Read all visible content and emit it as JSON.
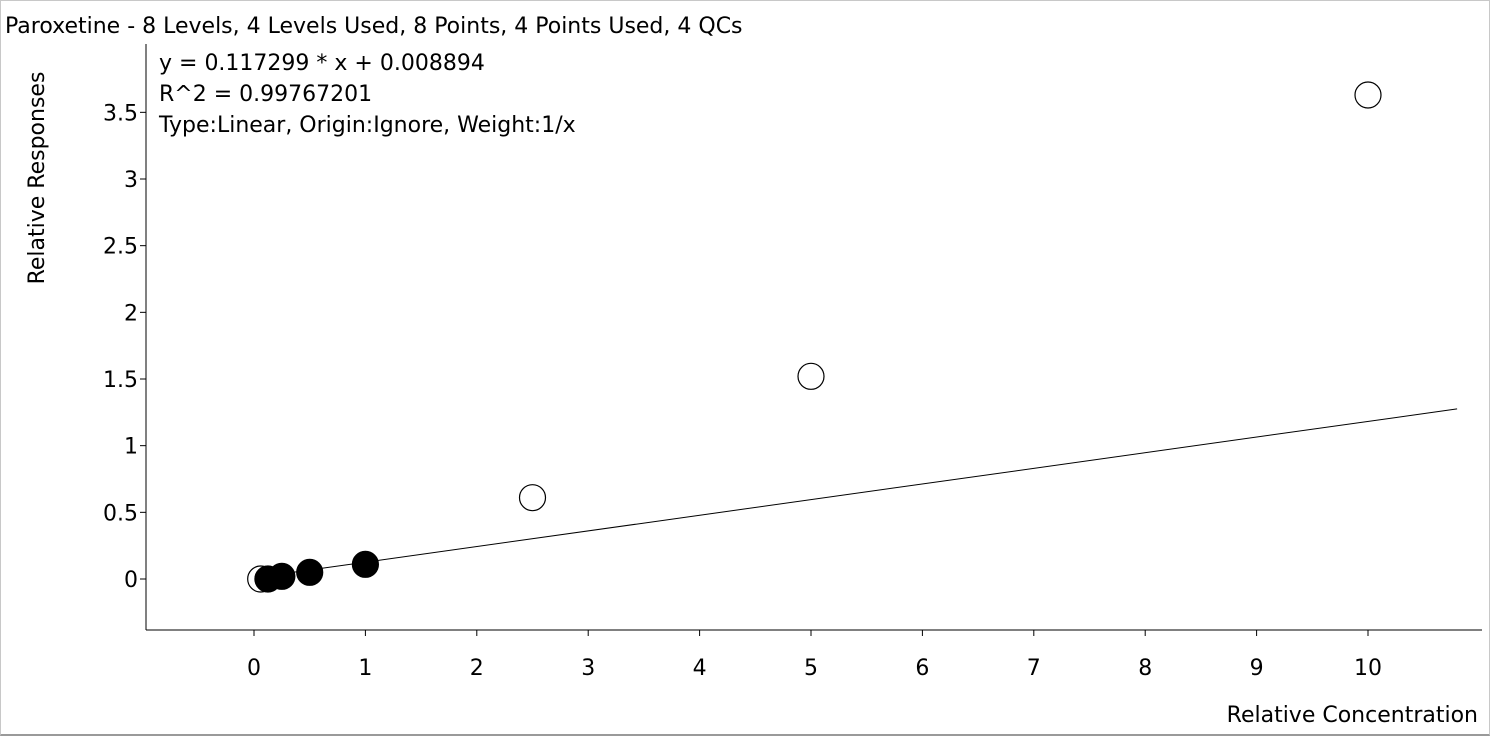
{
  "chart_data": {
    "type": "scatter",
    "title": "Paroxetine - 8 Levels, 4 Levels Used, 8 Points, 4 Points Used, 4 QCs",
    "xlabel": "Relative Concentration",
    "ylabel": "Relative Responses",
    "xlim": [
      -0.9,
      10.9
    ],
    "ylim": [
      -0.35,
      3.9
    ],
    "x_ticks": [
      0,
      1,
      2,
      3,
      4,
      5,
      6,
      7,
      8,
      9,
      10
    ],
    "x_tick_labels": [
      "0",
      "1",
      "2",
      "3",
      "4",
      "5",
      "6",
      "7",
      "8",
      "9",
      "10"
    ],
    "y_ticks": [
      0,
      0.5,
      1,
      1.5,
      2,
      2.5,
      3,
      3.5
    ],
    "y_tick_labels": [
      "0",
      "0.5",
      "1",
      "1.5",
      "2",
      "2.5",
      "3",
      "3.5"
    ],
    "grid": false,
    "annotations": {
      "equation": "y = 0.117299 * x  + 0.008894",
      "r_squared": "R^2 = 0.99767201",
      "fit_type": "Type:Linear, Origin:Ignore, Weight:1/x"
    },
    "fit_line": {
      "slope": 0.117299,
      "intercept": 0.008894,
      "x_range": [
        0,
        10.8
      ]
    },
    "series": [
      {
        "marker": "filled",
        "points": [
          {
            "x": 0.125,
            "y": 0.0
          },
          {
            "x": 0.25,
            "y": 0.02
          },
          {
            "x": 0.5,
            "y": 0.05
          },
          {
            "x": 1.0,
            "y": 0.11
          }
        ]
      },
      {
        "marker": "open",
        "points": [
          {
            "x": 0.06,
            "y": 0.0
          },
          {
            "x": 2.5,
            "y": 0.61
          },
          {
            "x": 5.0,
            "y": 1.52
          },
          {
            "x": 10.0,
            "y": 3.63
          }
        ]
      }
    ],
    "colors": {
      "line": "#000000",
      "filled_marker": "#000000",
      "open_marker_fill": "#ffffff"
    }
  }
}
